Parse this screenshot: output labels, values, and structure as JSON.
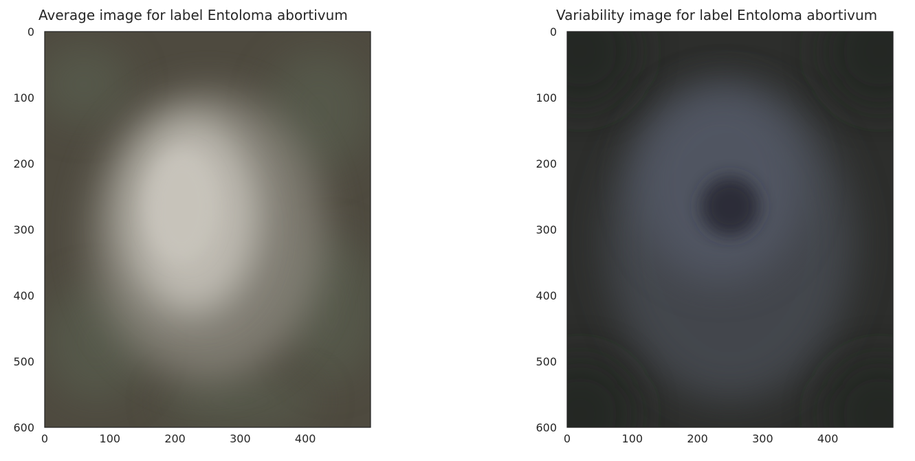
{
  "chart_data": [
    {
      "type": "image",
      "title": "Average image for label Entoloma abortivum",
      "xlim": [
        0,
        500
      ],
      "ylim": [
        600,
        0
      ],
      "xticks": [
        0,
        100,
        200,
        300,
        400
      ],
      "yticks": [
        0,
        100,
        200,
        300,
        400,
        500,
        600
      ],
      "xlabel": "",
      "ylabel": "",
      "grid": false,
      "colors": {
        "background": "#4e4a3f",
        "edge": "#3f3c33",
        "highlight": "#cfcbc2",
        "mid": "#8f8c82",
        "green_tint": "#5b6452",
        "spine": "#262626"
      }
    },
    {
      "type": "image",
      "title": "Variability image for label Entoloma abortivum",
      "xlim": [
        0,
        500
      ],
      "ylim": [
        600,
        0
      ],
      "xticks": [
        0,
        100,
        200,
        300,
        400
      ],
      "yticks": [
        0,
        100,
        200,
        300,
        400,
        500,
        600
      ],
      "xlabel": "",
      "ylabel": "",
      "grid": false,
      "colors": {
        "background": "#2d2e2c",
        "edge": "#242523",
        "highlight": "#5c6273",
        "mid": "#4a4e55",
        "dark_spot": "#252731",
        "spine": "#262626"
      }
    }
  ]
}
